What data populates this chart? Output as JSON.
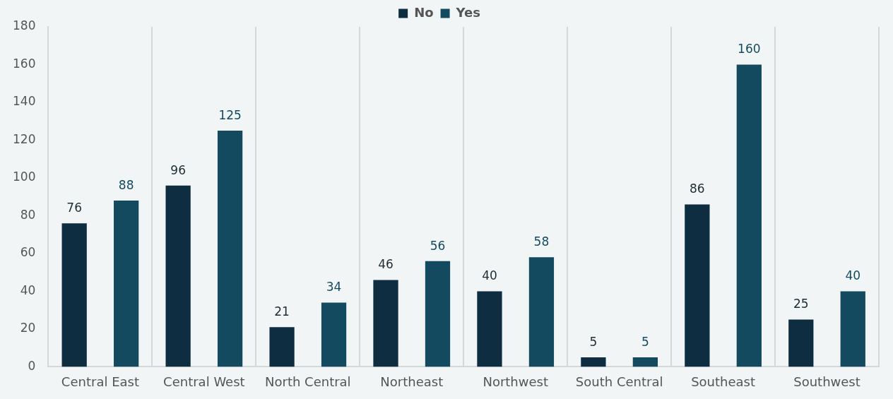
{
  "chart_data": {
    "type": "bar",
    "categories": [
      "Central East",
      "Central West",
      "North Central",
      "Northeast",
      "Northwest",
      "South Central",
      "Southeast",
      "Southwest"
    ],
    "series": [
      {
        "name": "No",
        "color": "#0f2d40",
        "values": [
          76,
          96,
          21,
          46,
          40,
          5,
          86,
          25
        ]
      },
      {
        "name": "Yes",
        "color": "#134a5f",
        "values": [
          88,
          125,
          34,
          56,
          58,
          5,
          160,
          40
        ]
      }
    ],
    "ylim": [
      0,
      180
    ],
    "yticks": [
      0,
      20,
      40,
      60,
      80,
      100,
      120,
      140,
      160,
      180
    ],
    "grid": "x",
    "legend": "top",
    "data_labels": true
  }
}
